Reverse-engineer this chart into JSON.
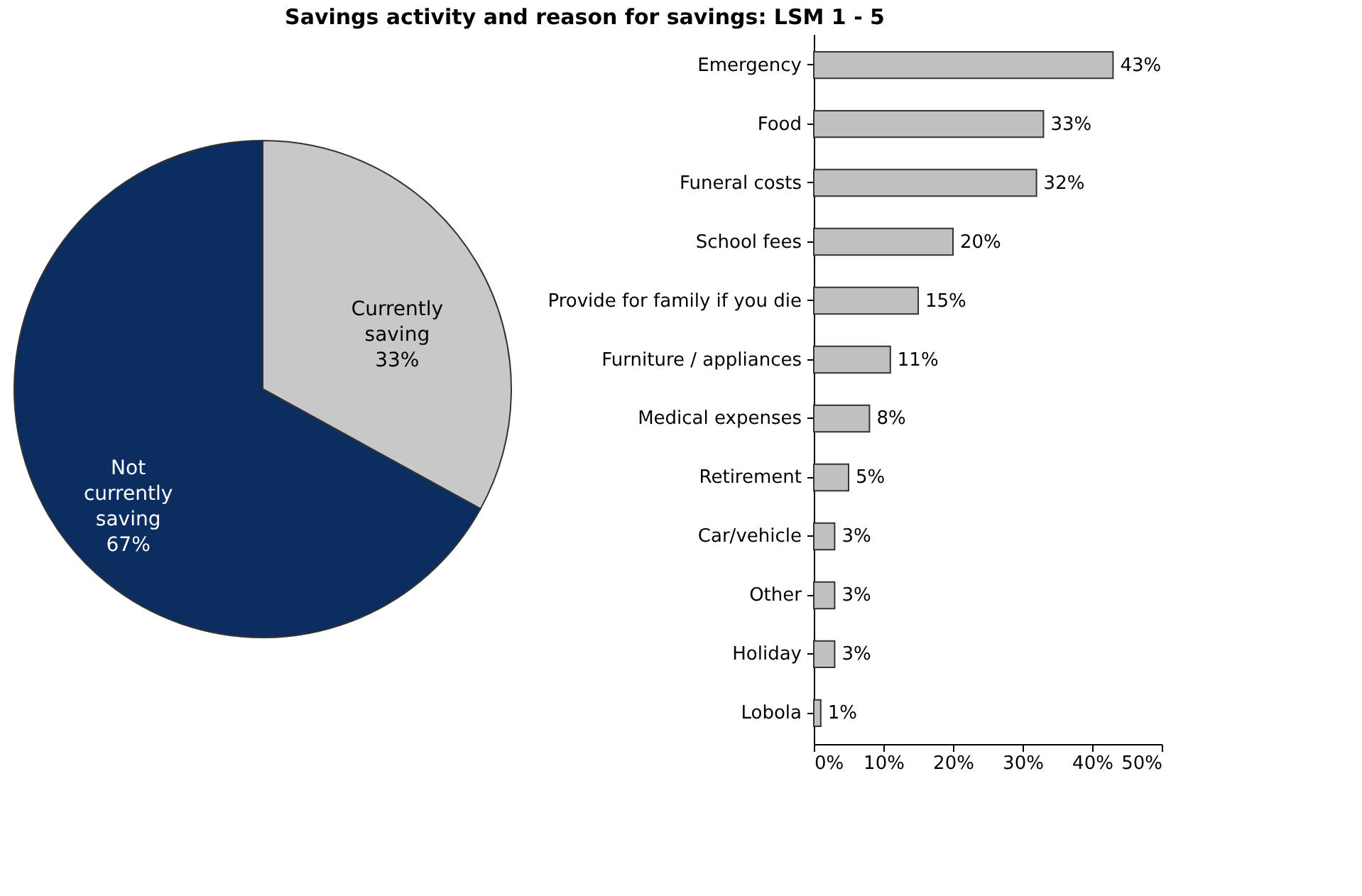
{
  "chart_data": [
    {
      "type": "pie",
      "title": "Savings activity and reason for savings: LSM 1 - 5",
      "categories": [
        "Currently saving",
        "Not currently saving"
      ],
      "values": [
        33,
        67
      ],
      "colors": [
        "#c8c8c8",
        "#0b2d5f"
      ],
      "value_labels": [
        "33%",
        "67%"
      ],
      "legend": false
    },
    {
      "type": "bar",
      "orientation": "horizontal",
      "categories": [
        "Emergency",
        "Food",
        "Funeral costs",
        "School fees",
        "Provide for family if you die",
        "Furniture / appliances",
        "Medical expenses",
        "Retirement",
        "Car/vehicle",
        "Other",
        "Holiday",
        "Lobola"
      ],
      "values": [
        43,
        33,
        32,
        20,
        15,
        11,
        8,
        5,
        3,
        3,
        3,
        1
      ],
      "value_labels": [
        "43%",
        "33%",
        "32%",
        "20%",
        "15%",
        "11%",
        "8%",
        "5%",
        "3%",
        "3%",
        "3%",
        "1%"
      ],
      "color": "#c0c0c0",
      "xlim": [
        0,
        50
      ],
      "xticks": [
        {
          "value": 0,
          "label": "0%"
        },
        {
          "value": 10,
          "label": "10%"
        },
        {
          "value": 20,
          "label": "20%"
        },
        {
          "value": 30,
          "label": "30%"
        },
        {
          "value": 40,
          "label": "40%"
        },
        {
          "value": 50,
          "label": "50%"
        }
      ],
      "tick_labels": true
    }
  ]
}
